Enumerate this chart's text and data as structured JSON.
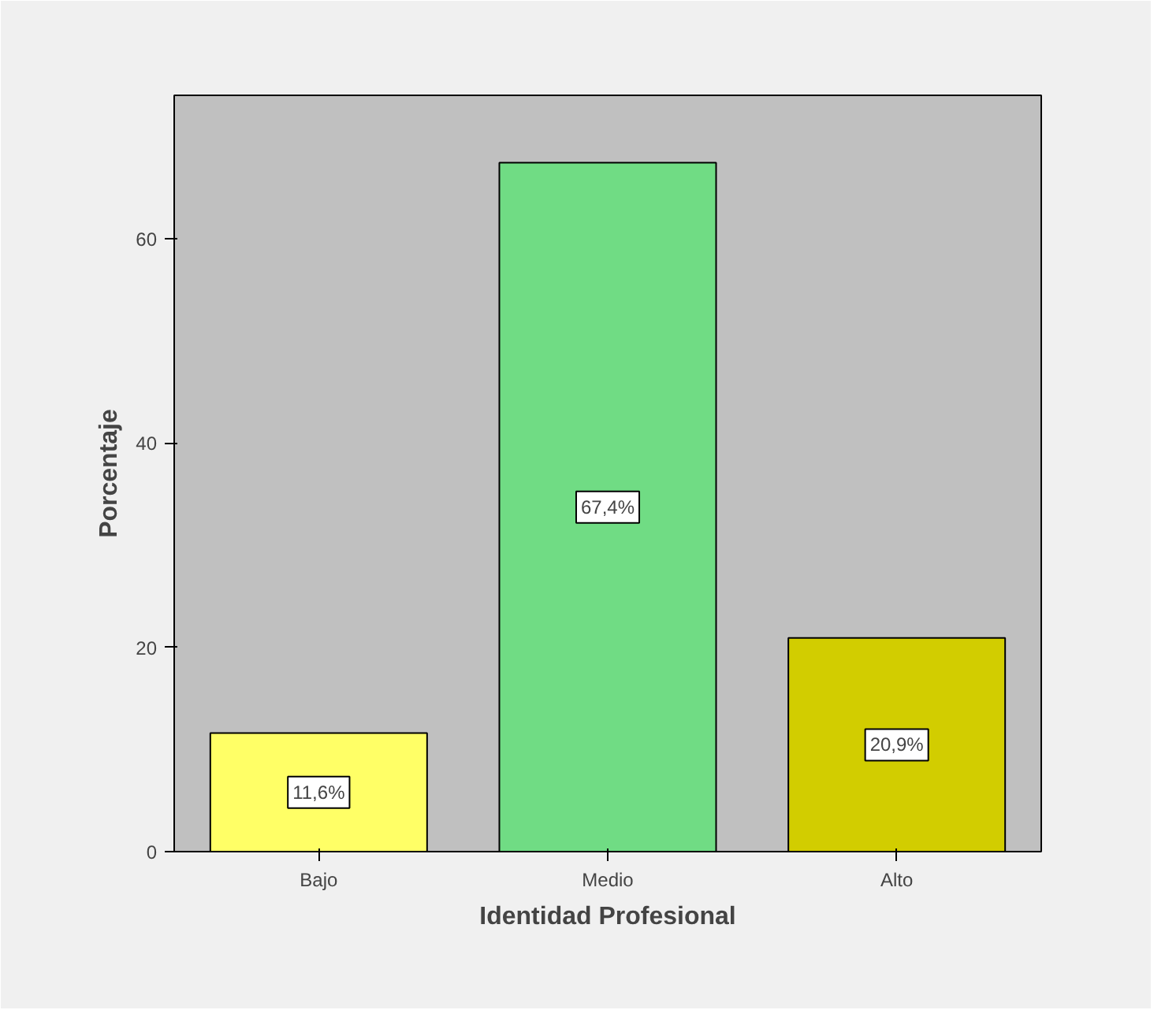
{
  "chart_data": {
    "type": "bar",
    "xlabel": "Identidad Profesional",
    "ylabel": "Porcentaje",
    "categories": [
      "Bajo",
      "Medio",
      "Alto"
    ],
    "values": [
      11.6,
      67.4,
      20.9
    ],
    "colors": [
      "#ffff66",
      "#70dc84",
      "#d2cd00"
    ],
    "value_labels": [
      "11,6%",
      "67,4%",
      "20,9%"
    ],
    "ylim": [
      0,
      74
    ],
    "yticks": [
      0,
      20,
      40,
      60
    ],
    "grid": false
  }
}
